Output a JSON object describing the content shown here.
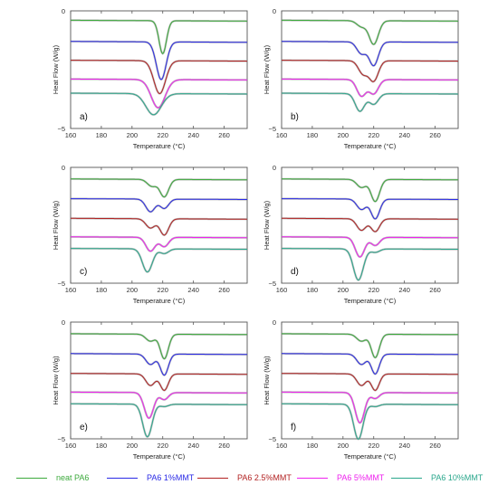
{
  "chart_data": [
    {
      "type": "line",
      "panel_label": "a)",
      "xlabel": "Temperature (°C)",
      "ylabel": "Heat Flow (W/g)",
      "xlim": [
        160,
        275
      ],
      "ylim": [
        -5,
        0
      ],
      "xticks": [
        160,
        180,
        200,
        220,
        240,
        260
      ],
      "yticks": [
        0,
        -5
      ],
      "grid": false,
      "series": [
        {
          "name": "neat PA6",
          "baseline": -0.4,
          "peaks": [
            {
              "t": 220,
              "d": 1.4,
              "w": 2.4
            }
          ]
        },
        {
          "name": "PA6 1%MMT",
          "baseline": -1.3,
          "peaks": [
            {
              "t": 219,
              "d": 1.6,
              "w": 3.2
            }
          ]
        },
        {
          "name": "PA6 2.5%MMT",
          "baseline": -2.1,
          "peaks": [
            {
              "t": 218,
              "d": 1.4,
              "w": 3.8
            }
          ]
        },
        {
          "name": "PA6 5%MMT",
          "baseline": -2.9,
          "peaks": [
            {
              "t": 217,
              "d": 1.2,
              "w": 4.5
            }
          ]
        },
        {
          "name": "PA6 10%MMT",
          "baseline": -3.5,
          "peaks": [
            {
              "t": 214,
              "d": 0.9,
              "w": 5.0
            }
          ]
        }
      ]
    },
    {
      "type": "line",
      "panel_label": "b)",
      "xlabel": "Temperature (°C)",
      "ylabel": "Heat Flow (W/g)",
      "xlim": [
        160,
        275
      ],
      "ylim": [
        -5,
        0
      ],
      "xticks": [
        160,
        180,
        200,
        220,
        240,
        260
      ],
      "yticks": [
        0,
        -5
      ],
      "grid": false,
      "series": [
        {
          "name": "neat PA6",
          "baseline": -0.4,
          "peaks": [
            {
              "t": 212,
              "d": 0.25,
              "w": 3.0
            },
            {
              "t": 220,
              "d": 1.0,
              "w": 3.0
            }
          ]
        },
        {
          "name": "PA6 1%MMT",
          "baseline": -1.3,
          "peaks": [
            {
              "t": 212,
              "d": 0.5,
              "w": 3.0
            },
            {
              "t": 220,
              "d": 1.0,
              "w": 3.0
            }
          ]
        },
        {
          "name": "PA6 2.5%MMT",
          "baseline": -2.1,
          "peaks": [
            {
              "t": 213,
              "d": 0.55,
              "w": 3.0
            },
            {
              "t": 220,
              "d": 0.85,
              "w": 3.0
            }
          ]
        },
        {
          "name": "PA6 5%MMT",
          "baseline": -2.9,
          "peaks": [
            {
              "t": 212,
              "d": 0.7,
              "w": 3.0
            },
            {
              "t": 220,
              "d": 0.6,
              "w": 3.0
            }
          ]
        },
        {
          "name": "PA6 10%MMT",
          "baseline": -3.5,
          "peaks": [
            {
              "t": 211,
              "d": 0.75,
              "w": 3.0
            },
            {
              "t": 220,
              "d": 0.45,
              "w": 3.0
            }
          ]
        }
      ]
    },
    {
      "type": "line",
      "panel_label": "c)",
      "xlabel": "Temperature (°C)",
      "ylabel": "Heat Flow (W/g)",
      "xlim": [
        160,
        275
      ],
      "ylim": [
        -5,
        0
      ],
      "xticks": [
        160,
        180,
        200,
        220,
        240,
        260
      ],
      "yticks": [
        0,
        -5
      ],
      "grid": false,
      "series": [
        {
          "name": "neat PA6",
          "baseline": -0.5,
          "peaks": [
            {
              "t": 213,
              "d": 0.3,
              "w": 3.0
            },
            {
              "t": 221,
              "d": 0.75,
              "w": 2.8
            }
          ]
        },
        {
          "name": "PA6 1%MMT",
          "baseline": -1.35,
          "peaks": [
            {
              "t": 212,
              "d": 0.55,
              "w": 3.0
            },
            {
              "t": 221,
              "d": 0.4,
              "w": 2.8
            }
          ]
        },
        {
          "name": "PA6 2.5%MMT",
          "baseline": -2.2,
          "peaks": [
            {
              "t": 212,
              "d": 0.4,
              "w": 3.0
            },
            {
              "t": 221,
              "d": 0.7,
              "w": 2.8
            }
          ]
        },
        {
          "name": "PA6 5%MMT",
          "baseline": -3.0,
          "peaks": [
            {
              "t": 212,
              "d": 0.6,
              "w": 3.0
            },
            {
              "t": 221,
              "d": 0.4,
              "w": 2.8
            }
          ]
        },
        {
          "name": "PA6 10%MMT",
          "baseline": -3.5,
          "peaks": [
            {
              "t": 210,
              "d": 1.0,
              "w": 3.2
            },
            {
              "t": 221,
              "d": 0.2,
              "w": 2.8
            }
          ]
        }
      ]
    },
    {
      "type": "line",
      "panel_label": "d)",
      "xlabel": "Temperature (°C)",
      "ylabel": "Heat Flow (W/g)",
      "xlim": [
        160,
        275
      ],
      "ylim": [
        -5,
        0
      ],
      "xticks": [
        160,
        180,
        200,
        220,
        240,
        260
      ],
      "yticks": [
        0,
        -5
      ],
      "grid": false,
      "series": [
        {
          "name": "neat PA6",
          "baseline": -0.5,
          "peaks": [
            {
              "t": 212,
              "d": 0.35,
              "w": 3.0
            },
            {
              "t": 221,
              "d": 0.95,
              "w": 2.8
            }
          ]
        },
        {
          "name": "PA6 1%MMT",
          "baseline": -1.35,
          "peaks": [
            {
              "t": 212,
              "d": 0.45,
              "w": 3.0
            },
            {
              "t": 221,
              "d": 0.85,
              "w": 2.8
            }
          ]
        },
        {
          "name": "PA6 2.5%MMT",
          "baseline": -2.2,
          "peaks": [
            {
              "t": 212,
              "d": 0.5,
              "w": 3.0
            },
            {
              "t": 221,
              "d": 0.55,
              "w": 2.8
            }
          ]
        },
        {
          "name": "PA6 5%MMT",
          "baseline": -3.0,
          "peaks": [
            {
              "t": 211,
              "d": 0.85,
              "w": 3.0
            },
            {
              "t": 221,
              "d": 0.35,
              "w": 2.8
            }
          ]
        },
        {
          "name": "PA6 10%MMT",
          "baseline": -3.5,
          "peaks": [
            {
              "t": 210,
              "d": 1.35,
              "w": 3.2
            },
            {
              "t": 221,
              "d": 0.15,
              "w": 2.8
            }
          ]
        }
      ]
    },
    {
      "type": "line",
      "panel_label": "e)",
      "xlabel": "Temperature (°C)",
      "ylabel": "Heat Flow (W/g)",
      "xlim": [
        160,
        275
      ],
      "ylim": [
        -5,
        0
      ],
      "xticks": [
        160,
        180,
        200,
        220,
        240,
        260
      ],
      "yticks": [
        0,
        -5
      ],
      "grid": false,
      "series": [
        {
          "name": "neat PA6",
          "baseline": -0.5,
          "peaks": [
            {
              "t": 212,
              "d": 0.3,
              "w": 3.0
            },
            {
              "t": 221,
              "d": 1.05,
              "w": 2.6
            }
          ]
        },
        {
          "name": "PA6 1%MMT",
          "baseline": -1.35,
          "peaks": [
            {
              "t": 212,
              "d": 0.45,
              "w": 3.0
            },
            {
              "t": 221,
              "d": 0.9,
              "w": 2.6
            }
          ]
        },
        {
          "name": "PA6 2.5%MMT",
          "baseline": -2.2,
          "peaks": [
            {
              "t": 212,
              "d": 0.5,
              "w": 3.0
            },
            {
              "t": 221,
              "d": 0.7,
              "w": 2.6
            }
          ]
        },
        {
          "name": "PA6 5%MMT",
          "baseline": -3.0,
          "peaks": [
            {
              "t": 211,
              "d": 1.1,
              "w": 3.0
            },
            {
              "t": 221,
              "d": 0.3,
              "w": 2.6
            }
          ]
        },
        {
          "name": "PA6 10%MMT",
          "baseline": -3.5,
          "peaks": [
            {
              "t": 210,
              "d": 1.4,
              "w": 3.0
            },
            {
              "t": 221,
              "d": 0.1,
              "w": 2.6
            }
          ]
        }
      ]
    },
    {
      "type": "line",
      "panel_label": "f)",
      "xlabel": "Temperature (°C)",
      "ylabel": "Heat Flow (W/g)",
      "xlim": [
        160,
        275
      ],
      "ylim": [
        -5,
        0
      ],
      "xticks": [
        160,
        180,
        200,
        220,
        240,
        260
      ],
      "yticks": [
        0,
        -5
      ],
      "grid": false,
      "series": [
        {
          "name": "neat PA6",
          "baseline": -0.5,
          "peaks": [
            {
              "t": 212,
              "d": 0.3,
              "w": 3.0
            },
            {
              "t": 221,
              "d": 1.0,
              "w": 2.6
            }
          ]
        },
        {
          "name": "PA6 1%MMT",
          "baseline": -1.35,
          "peaks": [
            {
              "t": 212,
              "d": 0.45,
              "w": 3.0
            },
            {
              "t": 221,
              "d": 0.85,
              "w": 2.6
            }
          ]
        },
        {
          "name": "PA6 2.5%MMT",
          "baseline": -2.2,
          "peaks": [
            {
              "t": 212,
              "d": 0.5,
              "w": 3.0
            },
            {
              "t": 221,
              "d": 0.7,
              "w": 2.6
            }
          ]
        },
        {
          "name": "PA6 5%MMT",
          "baseline": -3.0,
          "peaks": [
            {
              "t": 211,
              "d": 1.3,
              "w": 3.0
            },
            {
              "t": 221,
              "d": 0.25,
              "w": 2.6
            }
          ]
        },
        {
          "name": "PA6 10%MMT",
          "baseline": -3.5,
          "peaks": [
            {
              "t": 210,
              "d": 1.5,
              "w": 3.0
            },
            {
              "t": 221,
              "d": 0.1,
              "w": 2.6
            }
          ]
        }
      ]
    }
  ],
  "legend": {
    "placement": "bottom",
    "items": [
      {
        "label": "neat PA6",
        "color": "#3caa3c"
      },
      {
        "label": "PA6 1%MMT",
        "color": "#2a2ae6"
      },
      {
        "label": "PA6 2.5%MMT",
        "color": "#b22222"
      },
      {
        "label": "PA6 5%MMT",
        "color": "#ee22ee"
      },
      {
        "label": "PA6 10%MMT",
        "color": "#2aa78c"
      }
    ]
  },
  "colors": {
    "neat PA6": "#3caa3c",
    "PA6 1%MMT": "#2a2ae6",
    "PA6 2.5%MMT": "#b22222",
    "PA6 5%MMT": "#ee22ee",
    "PA6 10%MMT": "#2aa78c",
    "overlay": "#888888"
  }
}
